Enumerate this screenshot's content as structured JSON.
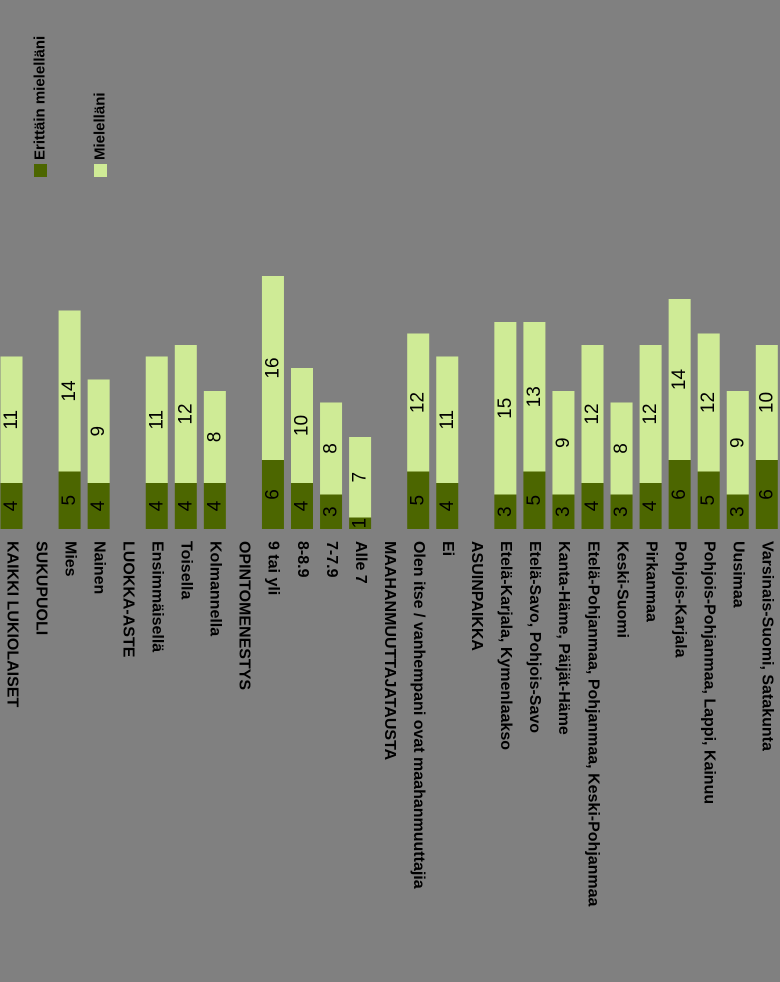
{
  "chart_data": {
    "type": "bar",
    "stacked": true,
    "orientation": "vertical, rotated 90°",
    "legend": "top-right",
    "grid": false,
    "colors": {
      "background": "#808080",
      "dark": "#4c6600",
      "light": "#cfeb96"
    },
    "series": [
      {
        "name": "Erittäin mielelläni",
        "color": "#4c6600"
      },
      {
        "name": "Mielelläni",
        "color": "#cfeb96"
      }
    ],
    "rows": [
      {
        "label": "KAIKKI LUKIOLAISET",
        "values": [
          4,
          11
        ]
      },
      {
        "label": "SUKUPUOLI",
        "header": true
      },
      {
        "label": "Mies",
        "values": [
          5,
          14
        ]
      },
      {
        "label": "Nainen",
        "values": [
          4,
          9
        ]
      },
      {
        "label": "LUOKKA-ASTE",
        "header": true
      },
      {
        "label": "Ensimmäisellä",
        "values": [
          4,
          11
        ]
      },
      {
        "label": "Toisella",
        "values": [
          4,
          12
        ]
      },
      {
        "label": "Kolmannella",
        "values": [
          4,
          8
        ]
      },
      {
        "label": "OPINTOMENESTYS",
        "header": true
      },
      {
        "label": "9 tai yli",
        "values": [
          6,
          16
        ]
      },
      {
        "label": "8-8.9",
        "values": [
          4,
          10
        ]
      },
      {
        "label": "7-7.9",
        "values": [
          3,
          8
        ]
      },
      {
        "label": "Alle 7",
        "values": [
          1,
          7
        ]
      },
      {
        "label": "MAAHANMUUTTAJATAUSTA",
        "header": true
      },
      {
        "label": "Olen itse / vanhempani ovat maahanmuuttajia",
        "values": [
          5,
          12
        ]
      },
      {
        "label": "Ei",
        "values": [
          4,
          11
        ]
      },
      {
        "label": "ASUINPAIKKA",
        "header": true
      },
      {
        "label": "Etelä-Karjala, Kymenlaakso",
        "values": [
          3,
          15
        ]
      },
      {
        "label": "Etelä-Savo, Pohjois-Savo",
        "values": [
          5,
          13
        ]
      },
      {
        "label": "Kanta-Häme, Päijät-Häme",
        "values": [
          3,
          9
        ]
      },
      {
        "label": "Etelä-Pohjanmaa, Pohjanmaa, Keski-Pohjanmaa",
        "values": [
          4,
          12
        ]
      },
      {
        "label": "Keski-Suomi",
        "values": [
          3,
          8
        ]
      },
      {
        "label": "Pirkanmaa",
        "values": [
          4,
          12
        ]
      },
      {
        "label": "Pohjois-Karjala",
        "values": [
          6,
          14
        ]
      },
      {
        "label": "Pohjois-Pohjanmaa, Lappi, Kainuu",
        "values": [
          5,
          12
        ]
      },
      {
        "label": "Uusimaa",
        "values": [
          3,
          9
        ]
      },
      {
        "label": "Varsinais-Suomi, Satakunta",
        "values": [
          6,
          10
        ]
      }
    ]
  }
}
